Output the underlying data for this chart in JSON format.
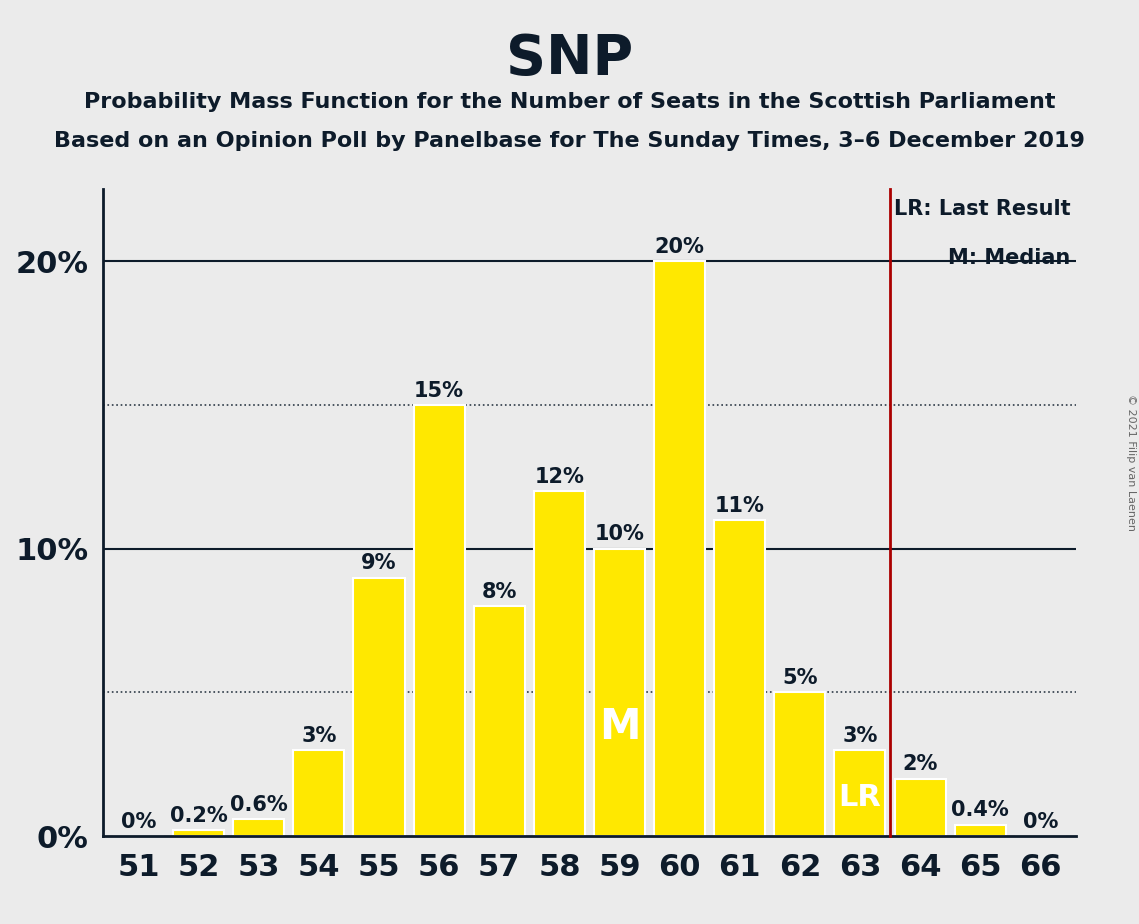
{
  "title": "SNP",
  "subtitle1": "Probability Mass Function for the Number of Seats in the Scottish Parliament",
  "subtitle2": "Based on an Opinion Poll by Panelbase for The Sunday Times, 3–6 December 2019",
  "copyright": "© 2021 Filip van Laenen",
  "categories": [
    51,
    52,
    53,
    54,
    55,
    56,
    57,
    58,
    59,
    60,
    61,
    62,
    63,
    64,
    65,
    66
  ],
  "values": [
    0.0,
    0.2,
    0.6,
    3.0,
    9.0,
    15.0,
    8.0,
    12.0,
    10.0,
    20.0,
    11.0,
    5.0,
    3.0,
    2.0,
    0.4,
    0.0
  ],
  "bar_labels": [
    "0%",
    "0.2%",
    "0.6%",
    "3%",
    "9%",
    "15%",
    "8%",
    "12%",
    "10%",
    "20%",
    "11%",
    "5%",
    "3%",
    "2%",
    "0.4%",
    "0%"
  ],
  "bar_color": "#FFE800",
  "bar_edge_color": "#FFFFFF",
  "background_color": "#EBEBEB",
  "axis_color": "#0D1B2A",
  "title_color": "#0D1B2A",
  "bar_label_color": "#0D1B2A",
  "median_label": "M",
  "median_cat": 59,
  "lr_label": "LR",
  "lr_cat": 63,
  "lr_line_cat": 64,
  "lr_line_color": "#AA0000",
  "yticks": [
    0,
    10,
    20
  ],
  "dotted_lines": [
    5,
    15
  ],
  "ylim_max": 22.5,
  "legend_lr": "LR: Last Result",
  "legend_m": "M: Median",
  "title_fontsize": 40,
  "subtitle_fontsize": 16,
  "tick_fontsize": 22,
  "bar_label_fontsize": 15,
  "median_fontsize": 30,
  "lr_fontsize": 22,
  "legend_fontsize": 15,
  "copyright_color": "#666666"
}
